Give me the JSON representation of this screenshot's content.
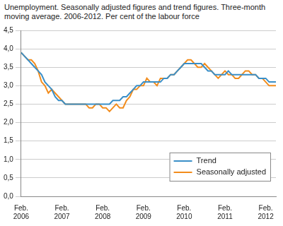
{
  "chart_data": {
    "type": "line",
    "title": "Unemployment. Seasonally adjusted figures and trend figures. Three-month moving average. 2006-2012. Per cent of the labour force",
    "categories": [
      "Feb. 2006",
      null,
      null,
      null,
      null,
      null,
      null,
      null,
      null,
      null,
      null,
      null,
      "Feb. 2007",
      null,
      null,
      null,
      null,
      null,
      null,
      null,
      null,
      null,
      null,
      null,
      "Feb. 2008",
      null,
      null,
      null,
      null,
      null,
      null,
      null,
      null,
      null,
      null,
      null,
      "Feb. 2009",
      null,
      null,
      null,
      null,
      null,
      null,
      null,
      null,
      null,
      null,
      null,
      "Feb. 2010",
      null,
      null,
      null,
      null,
      null,
      null,
      null,
      null,
      null,
      null,
      null,
      "Feb. 2011",
      null,
      null,
      null,
      null,
      null,
      null,
      null,
      null,
      null,
      null,
      null,
      "Feb. 2012",
      null,
      null,
      null
    ],
    "series": [
      {
        "name": "Trend",
        "color": "#3a8fc8",
        "values": [
          3.9,
          3.8,
          3.7,
          3.6,
          3.5,
          3.4,
          3.3,
          3.1,
          3.0,
          2.9,
          2.7,
          2.6,
          2.6,
          2.5,
          2.5,
          2.5,
          2.5,
          2.5,
          2.5,
          2.5,
          2.5,
          2.5,
          2.5,
          2.5,
          2.5,
          2.5,
          2.5,
          2.6,
          2.6,
          2.6,
          2.7,
          2.7,
          2.8,
          2.9,
          3.0,
          3.0,
          3.1,
          3.1,
          3.1,
          3.1,
          3.1,
          3.1,
          3.2,
          3.2,
          3.3,
          3.3,
          3.4,
          3.5,
          3.6,
          3.6,
          3.6,
          3.6,
          3.6,
          3.6,
          3.5,
          3.4,
          3.4,
          3.3,
          3.3,
          3.3,
          3.3,
          3.4,
          3.3,
          3.3,
          3.3,
          3.3,
          3.3,
          3.3,
          3.3,
          3.3,
          3.2,
          3.2,
          3.2,
          3.1,
          3.1,
          3.1
        ]
      },
      {
        "name": "Seasonally adjusted",
        "color": "#f28c1c",
        "values": [
          3.9,
          3.8,
          3.7,
          3.7,
          3.6,
          3.4,
          3.1,
          3.0,
          2.8,
          2.9,
          2.8,
          2.7,
          2.6,
          2.5,
          2.5,
          2.5,
          2.5,
          2.5,
          2.5,
          2.5,
          2.4,
          2.4,
          2.5,
          2.5,
          2.4,
          2.4,
          2.3,
          2.4,
          2.5,
          2.4,
          2.4,
          2.6,
          2.7,
          2.9,
          2.9,
          3.0,
          3.0,
          3.2,
          3.1,
          3.1,
          3.0,
          3.2,
          3.2,
          3.2,
          3.3,
          3.3,
          3.4,
          3.5,
          3.6,
          3.7,
          3.7,
          3.6,
          3.5,
          3.5,
          3.6,
          3.5,
          3.4,
          3.3,
          3.2,
          3.3,
          3.4,
          3.3,
          3.3,
          3.2,
          3.2,
          3.3,
          3.4,
          3.4,
          3.3,
          3.3,
          3.2,
          3.2,
          3.1,
          3.0,
          3.0,
          3.0
        ]
      }
    ],
    "ylim": [
      0,
      4.5
    ],
    "yticks": [
      {
        "value": 0,
        "label": "0,0"
      },
      {
        "value": 0.5,
        "label": "0,5"
      },
      {
        "value": 1,
        "label": "1,0"
      },
      {
        "value": 1.5,
        "label": "1,5"
      },
      {
        "value": 2,
        "label": "2,0"
      },
      {
        "value": 2.5,
        "label": "2,5"
      },
      {
        "value": 3,
        "label": "3,0"
      },
      {
        "value": 3.5,
        "label": "3,5"
      },
      {
        "value": 4,
        "label": "4,0"
      },
      {
        "value": 4.5,
        "label": "4,5"
      }
    ],
    "grid": true,
    "legend": "lower right"
  }
}
